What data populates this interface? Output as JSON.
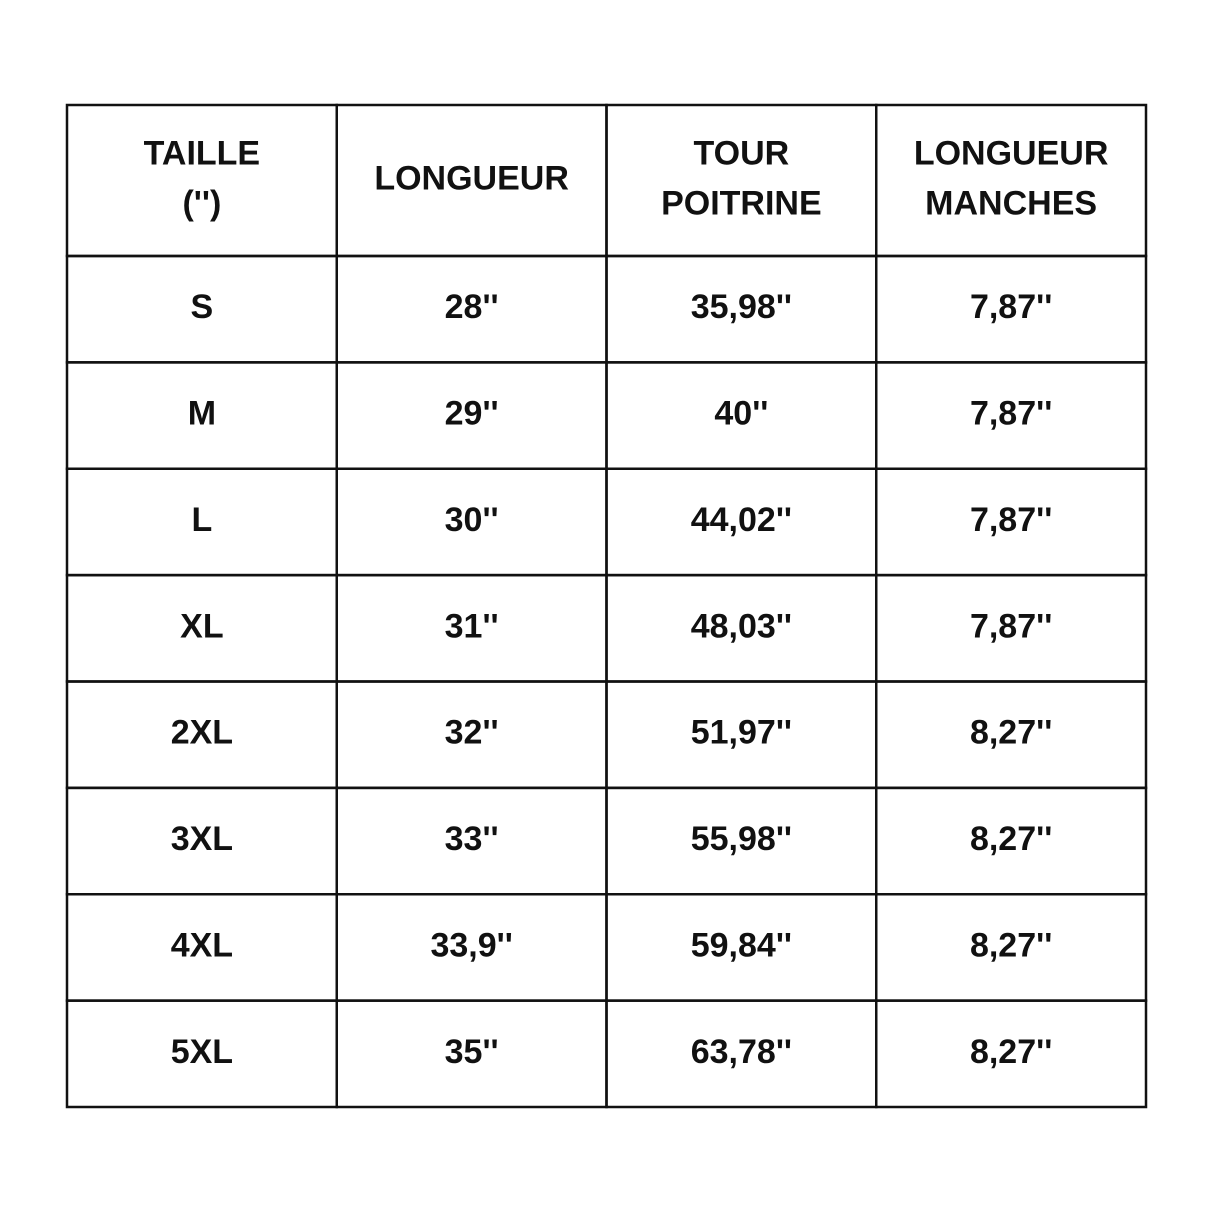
{
  "table": {
    "header": [
      [
        "TAILLE",
        "('')"
      ],
      [
        "LONGUEUR"
      ],
      [
        "TOUR",
        "POITRINE"
      ],
      [
        "LONGUEUR",
        "MANCHES"
      ]
    ],
    "rows": [
      [
        "S",
        "28''",
        "35,98''",
        "7,87''"
      ],
      [
        "M",
        "29''",
        "40''",
        "7,87''"
      ],
      [
        "L",
        "30''",
        "44,02''",
        "7,87''"
      ],
      [
        "XL",
        "31''",
        "48,03''",
        "7,87''"
      ],
      [
        "2XL",
        "32''",
        "51,97''",
        "8,27''"
      ],
      [
        "3XL",
        "33''",
        "55,98''",
        "8,27''"
      ],
      [
        "4XL",
        "33,9''",
        "59,84''",
        "8,27''"
      ],
      [
        "5XL",
        "35''",
        "63,78''",
        "8,27''"
      ]
    ]
  }
}
